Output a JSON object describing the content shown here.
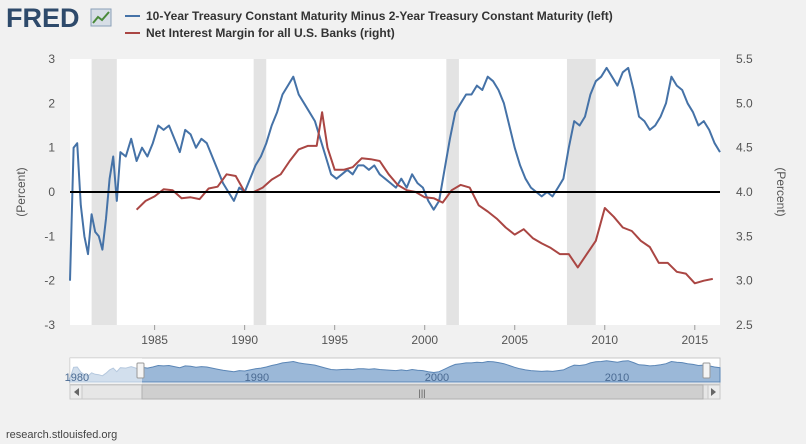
{
  "brand": {
    "name": "FRED"
  },
  "footer": {
    "source": "research.stlouisfed.org"
  },
  "navigator": {
    "labels": [
      "1980",
      "1990",
      "2000",
      "2010"
    ],
    "grip": "|||"
  },
  "chart_data": {
    "type": "line",
    "x_range": [
      1980.3,
      2016.4
    ],
    "x_ticks": [
      1985,
      1990,
      1995,
      2000,
      2005,
      2010,
      2015
    ],
    "y_left": {
      "label": "(Percent)",
      "range": [
        -3,
        3
      ],
      "ticks": [
        -3,
        -2,
        -1,
        0,
        1,
        2,
        3
      ]
    },
    "y_right": {
      "label": "(Percent)",
      "range": [
        2.5,
        5.5
      ],
      "ticks": [
        "2.5",
        "3.0",
        "3.5",
        "4.0",
        "4.5",
        "5.0",
        "5.5"
      ]
    },
    "recessions": [
      [
        1981.5,
        1982.9
      ],
      [
        1990.5,
        1991.2
      ],
      [
        2001.2,
        2001.9
      ],
      [
        2007.9,
        2009.5
      ]
    ],
    "series": [
      {
        "name": "10-Year Treasury Constant Maturity Minus 2-Year Treasury Constant Maturity (left)",
        "axis": "left",
        "color": "#4572a7",
        "points": [
          [
            1980.3,
            -2.0
          ],
          [
            1980.5,
            1.0
          ],
          [
            1980.7,
            1.1
          ],
          [
            1980.9,
            -0.3
          ],
          [
            1981.1,
            -1.0
          ],
          [
            1981.3,
            -1.4
          ],
          [
            1981.5,
            -0.5
          ],
          [
            1981.7,
            -0.9
          ],
          [
            1981.9,
            -1.0
          ],
          [
            1982.1,
            -1.3
          ],
          [
            1982.3,
            -0.6
          ],
          [
            1982.5,
            0.3
          ],
          [
            1982.7,
            0.8
          ],
          [
            1982.9,
            -0.2
          ],
          [
            1983.1,
            0.9
          ],
          [
            1983.4,
            0.8
          ],
          [
            1983.7,
            1.2
          ],
          [
            1984.0,
            0.7
          ],
          [
            1984.3,
            1.0
          ],
          [
            1984.6,
            0.8
          ],
          [
            1984.9,
            1.1
          ],
          [
            1985.2,
            1.5
          ],
          [
            1985.5,
            1.4
          ],
          [
            1985.8,
            1.5
          ],
          [
            1986.1,
            1.2
          ],
          [
            1986.4,
            0.9
          ],
          [
            1986.7,
            1.4
          ],
          [
            1987.0,
            1.3
          ],
          [
            1987.3,
            1.0
          ],
          [
            1987.6,
            1.2
          ],
          [
            1987.9,
            1.1
          ],
          [
            1988.2,
            0.8
          ],
          [
            1988.5,
            0.5
          ],
          [
            1988.8,
            0.2
          ],
          [
            1989.1,
            0.0
          ],
          [
            1989.4,
            -0.2
          ],
          [
            1989.7,
            0.1
          ],
          [
            1990.0,
            0.0
          ],
          [
            1990.3,
            0.3
          ],
          [
            1990.6,
            0.6
          ],
          [
            1990.9,
            0.8
          ],
          [
            1991.2,
            1.1
          ],
          [
            1991.5,
            1.5
          ],
          [
            1991.8,
            1.8
          ],
          [
            1992.1,
            2.2
          ],
          [
            1992.4,
            2.4
          ],
          [
            1992.7,
            2.6
          ],
          [
            1993.0,
            2.2
          ],
          [
            1993.3,
            2.0
          ],
          [
            1993.6,
            1.8
          ],
          [
            1993.9,
            1.6
          ],
          [
            1994.2,
            1.2
          ],
          [
            1994.5,
            0.8
          ],
          [
            1994.8,
            0.4
          ],
          [
            1995.1,
            0.3
          ],
          [
            1995.4,
            0.4
          ],
          [
            1995.7,
            0.5
          ],
          [
            1996.0,
            0.4
          ],
          [
            1996.3,
            0.6
          ],
          [
            1996.6,
            0.6
          ],
          [
            1996.9,
            0.5
          ],
          [
            1997.2,
            0.6
          ],
          [
            1997.5,
            0.4
          ],
          [
            1997.8,
            0.3
          ],
          [
            1998.1,
            0.2
          ],
          [
            1998.4,
            0.1
          ],
          [
            1998.7,
            0.3
          ],
          [
            1999.0,
            0.1
          ],
          [
            1999.3,
            0.4
          ],
          [
            1999.6,
            0.2
          ],
          [
            1999.9,
            0.1
          ],
          [
            2000.2,
            -0.2
          ],
          [
            2000.5,
            -0.4
          ],
          [
            2000.8,
            -0.2
          ],
          [
            2001.1,
            0.5
          ],
          [
            2001.4,
            1.2
          ],
          [
            2001.7,
            1.8
          ],
          [
            2002.0,
            2.0
          ],
          [
            2002.3,
            2.2
          ],
          [
            2002.6,
            2.2
          ],
          [
            2002.9,
            2.4
          ],
          [
            2003.2,
            2.3
          ],
          [
            2003.5,
            2.6
          ],
          [
            2003.8,
            2.5
          ],
          [
            2004.1,
            2.3
          ],
          [
            2004.4,
            2.0
          ],
          [
            2004.7,
            1.5
          ],
          [
            2005.0,
            1.0
          ],
          [
            2005.3,
            0.6
          ],
          [
            2005.6,
            0.3
          ],
          [
            2005.9,
            0.1
          ],
          [
            2006.2,
            0.0
          ],
          [
            2006.5,
            -0.1
          ],
          [
            2006.8,
            0.0
          ],
          [
            2007.1,
            -0.1
          ],
          [
            2007.4,
            0.1
          ],
          [
            2007.7,
            0.3
          ],
          [
            2008.0,
            1.0
          ],
          [
            2008.3,
            1.6
          ],
          [
            2008.6,
            1.5
          ],
          [
            2008.9,
            1.7
          ],
          [
            2009.2,
            2.2
          ],
          [
            2009.5,
            2.5
          ],
          [
            2009.8,
            2.6
          ],
          [
            2010.1,
            2.8
          ],
          [
            2010.4,
            2.6
          ],
          [
            2010.7,
            2.4
          ],
          [
            2011.0,
            2.7
          ],
          [
            2011.3,
            2.8
          ],
          [
            2011.6,
            2.3
          ],
          [
            2011.9,
            1.7
          ],
          [
            2012.2,
            1.6
          ],
          [
            2012.5,
            1.4
          ],
          [
            2012.8,
            1.5
          ],
          [
            2013.1,
            1.7
          ],
          [
            2013.4,
            2.0
          ],
          [
            2013.7,
            2.6
          ],
          [
            2014.0,
            2.4
          ],
          [
            2014.3,
            2.3
          ],
          [
            2014.6,
            2.0
          ],
          [
            2014.9,
            1.8
          ],
          [
            2015.2,
            1.5
          ],
          [
            2015.5,
            1.6
          ],
          [
            2015.8,
            1.4
          ],
          [
            2016.1,
            1.1
          ],
          [
            2016.4,
            0.9
          ]
        ]
      },
      {
        "name": "Net Interest Margin for all U.S. Banks (right)",
        "axis": "right",
        "color": "#aa4643",
        "points": [
          [
            1984.0,
            3.8
          ],
          [
            1984.5,
            3.9
          ],
          [
            1985.0,
            3.95
          ],
          [
            1985.5,
            4.03
          ],
          [
            1986.0,
            4.02
          ],
          [
            1986.5,
            3.93
          ],
          [
            1987.0,
            3.94
          ],
          [
            1987.5,
            3.92
          ],
          [
            1988.0,
            4.04
          ],
          [
            1988.5,
            4.06
          ],
          [
            1989.0,
            4.2
          ],
          [
            1989.5,
            4.18
          ],
          [
            1990.0,
            4.0
          ],
          [
            1990.5,
            4.0
          ],
          [
            1991.0,
            4.05
          ],
          [
            1991.5,
            4.14
          ],
          [
            1992.0,
            4.2
          ],
          [
            1992.5,
            4.35
          ],
          [
            1993.0,
            4.48
          ],
          [
            1993.5,
            4.52
          ],
          [
            1994.0,
            4.52
          ],
          [
            1994.3,
            4.9
          ],
          [
            1994.6,
            4.5
          ],
          [
            1995.0,
            4.25
          ],
          [
            1995.5,
            4.25
          ],
          [
            1996.0,
            4.28
          ],
          [
            1996.5,
            4.38
          ],
          [
            1997.0,
            4.37
          ],
          [
            1997.5,
            4.35
          ],
          [
            1998.0,
            4.2
          ],
          [
            1998.5,
            4.08
          ],
          [
            1999.0,
            4.02
          ],
          [
            1999.5,
            4.0
          ],
          [
            2000.0,
            3.94
          ],
          [
            2000.5,
            3.93
          ],
          [
            2001.0,
            3.88
          ],
          [
            2001.5,
            4.02
          ],
          [
            2002.0,
            4.08
          ],
          [
            2002.5,
            4.05
          ],
          [
            2003.0,
            3.85
          ],
          [
            2003.5,
            3.78
          ],
          [
            2004.0,
            3.7
          ],
          [
            2004.5,
            3.6
          ],
          [
            2005.0,
            3.52
          ],
          [
            2005.5,
            3.58
          ],
          [
            2006.0,
            3.48
          ],
          [
            2006.5,
            3.42
          ],
          [
            2007.0,
            3.37
          ],
          [
            2007.5,
            3.3
          ],
          [
            2008.0,
            3.3
          ],
          [
            2008.5,
            3.15
          ],
          [
            2009.0,
            3.3
          ],
          [
            2009.5,
            3.45
          ],
          [
            2010.0,
            3.82
          ],
          [
            2010.5,
            3.72
          ],
          [
            2011.0,
            3.6
          ],
          [
            2011.5,
            3.56
          ],
          [
            2012.0,
            3.45
          ],
          [
            2012.5,
            3.38
          ],
          [
            2013.0,
            3.2
          ],
          [
            2013.5,
            3.2
          ],
          [
            2014.0,
            3.1
          ],
          [
            2014.5,
            3.08
          ],
          [
            2015.0,
            2.97
          ],
          [
            2015.5,
            3.0
          ],
          [
            2016.0,
            3.02
          ]
        ]
      }
    ]
  }
}
